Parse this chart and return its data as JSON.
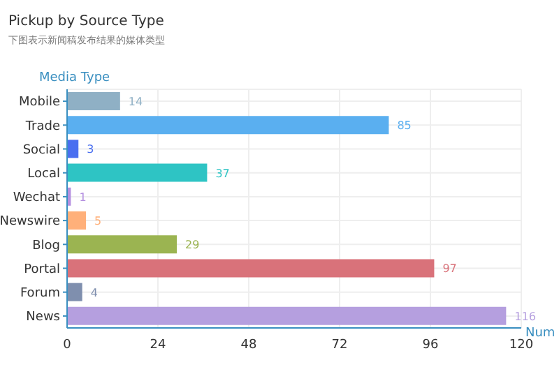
{
  "chart_data": {
    "type": "bar",
    "orientation": "horizontal",
    "title": "Pickup by Source Type",
    "subtitle": "下图表示新闻稿发布结果的媒体类型",
    "ylabel": "Media Type",
    "xlabel": "Num",
    "categories": [
      "Mobile",
      "Trade",
      "Social",
      "Local",
      "Wechat",
      "Newswire",
      "Blog",
      "Portal",
      "Forum",
      "News"
    ],
    "values": [
      14,
      85,
      3,
      37,
      1,
      5,
      29,
      97,
      4,
      116
    ],
    "colors": [
      "#8fb0c5",
      "#5aaff0",
      "#4a6ff0",
      "#2ec4c4",
      "#b48fe0",
      "#ffb07a",
      "#9bb451",
      "#d9727a",
      "#7f8fae",
      "#b59fdf"
    ],
    "xlim": [
      0,
      120
    ],
    "xticks": [
      0,
      24,
      48,
      72,
      96,
      120
    ],
    "grid": true,
    "data_labels": true
  }
}
